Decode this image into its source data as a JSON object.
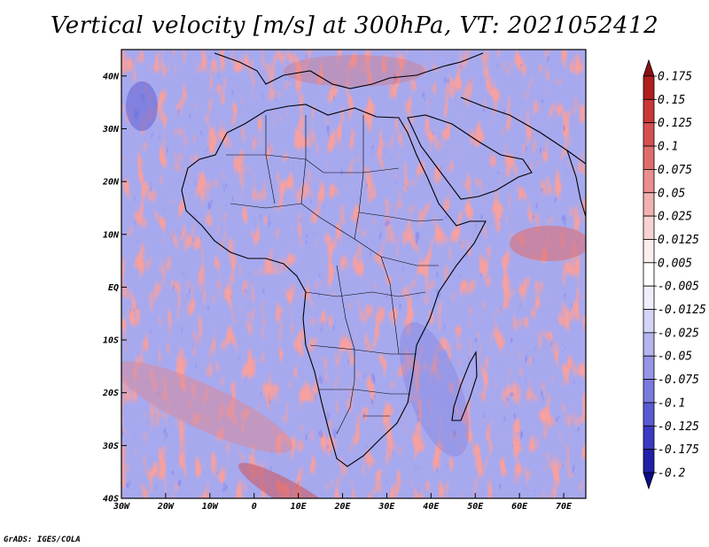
{
  "title": "Vertical velocity [m/s] at 300hPa, VT: 2021052412",
  "credit": "GrADS: IGES/COLA",
  "map": {
    "lon_range": [
      -30,
      75
    ],
    "lat_range": [
      -40,
      45
    ],
    "x_ticks": [
      {
        "lon": -30,
        "label": "30W"
      },
      {
        "lon": -20,
        "label": "20W"
      },
      {
        "lon": -10,
        "label": "10W"
      },
      {
        "lon": 0,
        "label": "0"
      },
      {
        "lon": 10,
        "label": "10E"
      },
      {
        "lon": 20,
        "label": "20E"
      },
      {
        "lon": 30,
        "label": "30E"
      },
      {
        "lon": 40,
        "label": "40E"
      },
      {
        "lon": 50,
        "label": "50E"
      },
      {
        "lon": 60,
        "label": "60E"
      },
      {
        "lon": 70,
        "label": "70E"
      }
    ],
    "y_ticks": [
      {
        "lat": 40,
        "label": "40N"
      },
      {
        "lat": 30,
        "label": "30N"
      },
      {
        "lat": 20,
        "label": "20N"
      },
      {
        "lat": 10,
        "label": "10N"
      },
      {
        "lat": 0,
        "label": "EQ"
      },
      {
        "lat": -10,
        "label": "10S"
      },
      {
        "lat": -20,
        "label": "20S"
      },
      {
        "lat": -30,
        "label": "30S"
      },
      {
        "lat": -40,
        "label": "40S"
      }
    ]
  },
  "colorbar": {
    "labels": [
      "0.175",
      "0.15",
      "0.125",
      "0.1",
      "0.075",
      "0.05",
      "0.025",
      "0.0125",
      "0.005",
      "-0.005",
      "-0.0125",
      "-0.025",
      "-0.05",
      "-0.075",
      "-0.1",
      "-0.125",
      "-0.175",
      "-0.2"
    ],
    "colors": [
      "#8b0f14",
      "#b01e1e",
      "#c83838",
      "#d65050",
      "#e06c6c",
      "#ea8e8e",
      "#f2b1b1",
      "#f8d2d2",
      "#fdeeee",
      "#ffffff",
      "#eeeefd",
      "#d4d4f8",
      "#b4b4f0",
      "#9696e8",
      "#7a7ade",
      "#5a5ad2",
      "#3a3ac2",
      "#1f1fa8",
      "#0c0c86"
    ]
  }
}
